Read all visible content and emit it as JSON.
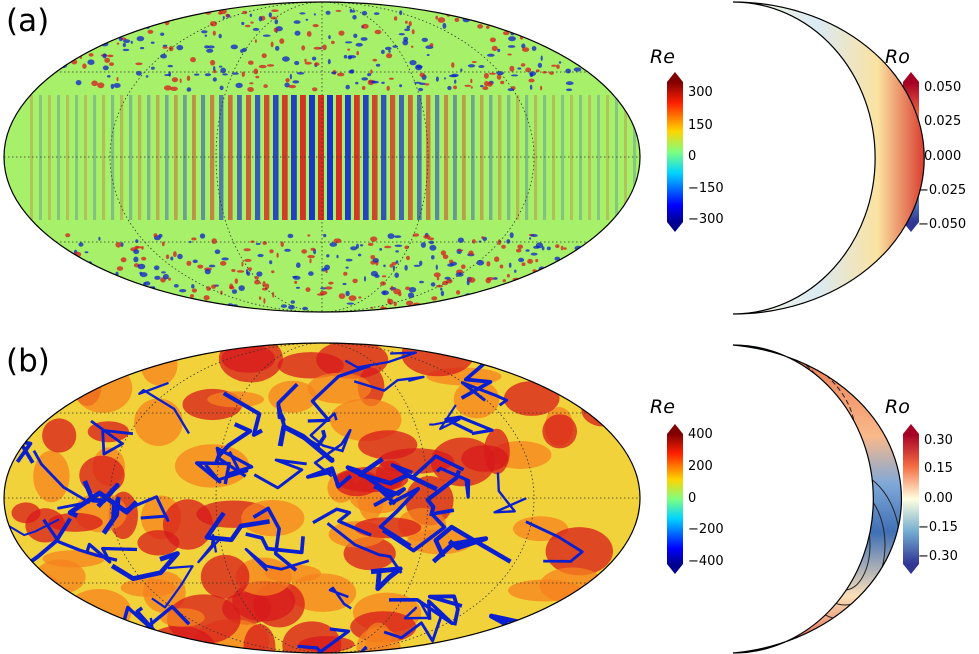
{
  "panels": [
    {
      "label": "(a)",
      "colorbar_left": {
        "title": "Re",
        "ticks": [
          "300",
          "150",
          "0",
          "−150",
          "−300"
        ]
      },
      "colorbar_right": {
        "title": "Ro",
        "ticks": [
          "0.050",
          "0.025",
          "0.000",
          "−0.025",
          "−0.050"
        ]
      }
    },
    {
      "label": "(b)",
      "colorbar_left": {
        "title": "Re",
        "ticks": [
          "400",
          "200",
          "0",
          "−200",
          "−400"
        ]
      },
      "colorbar_right": {
        "title": "Ro",
        "ticks": [
          "0.30",
          "0.15",
          "0.00",
          "−0.15",
          "−0.30"
        ]
      }
    }
  ],
  "colors": {
    "jet_background": "#a6f06a",
    "jet_red": "#d7191c",
    "jet_blue": "#0a1fd0",
    "rdbu_red": "#b2182b",
    "rdbu_blue": "#2c5aa0"
  }
}
